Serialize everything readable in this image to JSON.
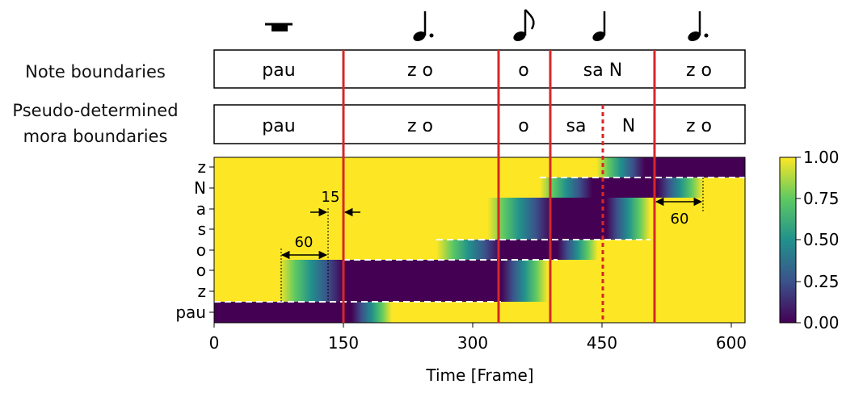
{
  "row_labels": {
    "note": "Note boundaries",
    "mora_line1": "Pseudo-determined",
    "mora_line2": "mora boundaries"
  },
  "notes": [
    {
      "symbol": "rest-icon",
      "label": "pau"
    },
    {
      "symbol": "dotted-quarter-note-icon",
      "label": "z o"
    },
    {
      "symbol": "eighth-note-icon",
      "label": "o"
    },
    {
      "symbol": "quarter-note-icon",
      "label": "sa N"
    },
    {
      "symbol": "dotted-quarter-note-icon",
      "label": "z o"
    }
  ],
  "mora": [
    "pau",
    "z o",
    "o",
    "sa",
    "N",
    "z o"
  ],
  "chart_data": {
    "type": "heatmap",
    "xlabel": "Time [Frame]",
    "x_ticks": [
      0,
      150,
      300,
      450,
      600
    ],
    "xlim": [
      0,
      615
    ],
    "y_labels": [
      "pau",
      "z",
      "o",
      "o",
      "s",
      "a",
      "N",
      "z"
    ],
    "note_boundaries": [
      150,
      330,
      390,
      510
    ],
    "mora_boundary": 450,
    "colorbar": {
      "min": 0.0,
      "max": 1.0,
      "ticks": [
        "0.00",
        "0.25",
        "0.50",
        "0.75",
        "1.00"
      ]
    },
    "annotations": [
      {
        "label": "60",
        "from": 75,
        "to": 135
      },
      {
        "label": "15",
        "from": 135,
        "to": 150
      },
      {
        "label": "60",
        "from": 510,
        "to": 570
      }
    ]
  }
}
